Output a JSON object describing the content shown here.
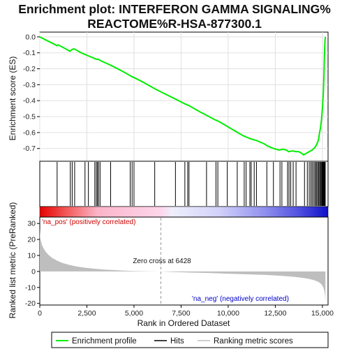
{
  "title_line1": "Enrichment plot: INTERFERON GAMMA SIGNALING%",
  "title_line2": "REACTOME%R-HSA-877300.1",
  "legend": {
    "enrichment_profile": "Enrichment profile",
    "hits": "Hits",
    "ranking_metric": "Ranking metric scores"
  },
  "annotations": {
    "pos_label": "'na_pos' (positively correlated)",
    "neg_label": "'na_neg' (negatively correlated)",
    "zero_cross": "Zero cross at 6428"
  },
  "colors": {
    "enrichment_line": "#00ee00",
    "hit_line": "#000000",
    "metric_fill": "#bebebe",
    "pos_text": "#cc0000",
    "neg_text": "#0000cc",
    "grid": "#e0e0e0"
  },
  "chart_data": [
    {
      "type": "line",
      "ylabel": "Enrichment score (ES)",
      "x_range": [
        0,
        15300
      ],
      "ylim": [
        -0.78,
        0.03
      ],
      "y_ticks": [
        0.0,
        -0.1,
        -0.2,
        -0.3,
        -0.4,
        -0.5,
        -0.6,
        -0.7
      ],
      "y_tick_labels": [
        "0.0",
        "-0.1",
        "-0.2",
        "-0.3",
        "-0.4",
        "-0.5",
        "-0.6",
        "-0.7"
      ],
      "grid": true,
      "series": [
        {
          "x": [
            0,
            500,
            920,
            970,
            1300,
            1600,
            1700,
            1800,
            1900,
            2200,
            2400,
            2600,
            2900,
            3000,
            3100,
            3250,
            3800,
            4300,
            4900,
            5000,
            5500,
            6100,
            6428,
            7200,
            7700,
            7900,
            8500,
            8900,
            9300,
            9500,
            10000,
            10500,
            10800,
            11000,
            11200,
            11500,
            11900,
            12100,
            12400,
            12700,
            12900,
            13100,
            13200,
            13400,
            13600,
            13750,
            13900,
            14000,
            14150,
            14300,
            14450,
            14550,
            14650,
            14750,
            14800,
            14850,
            14900,
            14950,
            15000,
            15050,
            15080,
            15100,
            15120,
            15140,
            15160
          ],
          "y": [
            0.0,
            -0.03,
            -0.055,
            -0.05,
            -0.07,
            -0.09,
            -0.08,
            -0.075,
            -0.08,
            -0.1,
            -0.11,
            -0.12,
            -0.135,
            -0.14,
            -0.14,
            -0.15,
            -0.18,
            -0.21,
            -0.25,
            -0.255,
            -0.285,
            -0.325,
            -0.345,
            -0.39,
            -0.42,
            -0.43,
            -0.47,
            -0.495,
            -0.52,
            -0.53,
            -0.565,
            -0.6,
            -0.62,
            -0.63,
            -0.64,
            -0.65,
            -0.67,
            -0.685,
            -0.7,
            -0.71,
            -0.705,
            -0.71,
            -0.72,
            -0.715,
            -0.72,
            -0.72,
            -0.73,
            -0.74,
            -0.73,
            -0.72,
            -0.71,
            -0.7,
            -0.685,
            -0.66,
            -0.64,
            -0.6,
            -0.57,
            -0.52,
            -0.45,
            -0.35,
            -0.25,
            -0.15,
            -0.07,
            -0.02,
            0.0
          ]
        }
      ]
    },
    {
      "type": "scatter",
      "name": "hits",
      "x_range": [
        0,
        15300
      ],
      "hit_ranks": [
        920,
        1620,
        1720,
        1850,
        2400,
        2580,
        2920,
        3000,
        3060,
        3120,
        3200,
        3760,
        4800,
        4900,
        5000,
        6100,
        7200,
        7700,
        7850,
        7920,
        8850,
        9350,
        9450,
        9950,
        10480,
        10850,
        10950,
        11150,
        11220,
        11380,
        11500,
        12050,
        12400,
        12750,
        12850,
        13150,
        13230,
        13320,
        13450,
        13600,
        14050,
        14200,
        14300,
        14380,
        14450,
        14520,
        14590,
        14650,
        14700,
        14760,
        14810,
        14860,
        14900,
        14940,
        14980,
        15010,
        15040,
        15070,
        15100,
        15130,
        15150
      ]
    },
    {
      "type": "area",
      "ylabel": "Ranked list metric (PreRanked)",
      "xlabel": "Rank in Ordered Dataset",
      "x_range": [
        0,
        15300
      ],
      "ylim": [
        -21,
        34
      ],
      "y_ticks": [
        30,
        20,
        10,
        0,
        -10,
        -20
      ],
      "y_tick_labels": [
        "30",
        "20",
        "10",
        "0",
        "-10",
        "-20"
      ],
      "x_ticks": [
        0,
        2500,
        5000,
        7500,
        10000,
        12500,
        15000
      ],
      "x_tick_labels": [
        "0",
        "2,500",
        "5,000",
        "7,500",
        "10,000",
        "12,500",
        "15,000"
      ],
      "zero_cross": 6428,
      "x": [
        0,
        20,
        60,
        120,
        200,
        300,
        450,
        650,
        900,
        1200,
        1600,
        2000,
        2500,
        3000,
        3500,
        4000,
        4500,
        5000,
        5500,
        6000,
        6428,
        7000,
        7500,
        8000,
        9000,
        10000,
        11000,
        12000,
        12500,
        13000,
        13500,
        14000,
        14300,
        14600,
        14800,
        14950,
        15050,
        15100,
        15130,
        15150,
        15160
      ],
      "values": [
        27,
        22,
        19,
        16.5,
        14.5,
        12.5,
        10.5,
        8.5,
        6.8,
        5.3,
        4,
        3,
        2.2,
        1.6,
        1.1,
        0.8,
        0.5,
        0.3,
        0.15,
        0.05,
        0,
        -0.3,
        -0.5,
        -0.7,
        -1.0,
        -1.4,
        -1.8,
        -2.2,
        -2.5,
        -2.9,
        -3.4,
        -4.1,
        -4.7,
        -5.6,
        -6.6,
        -8,
        -10,
        -12,
        -14,
        -17,
        -19
      ]
    }
  ]
}
